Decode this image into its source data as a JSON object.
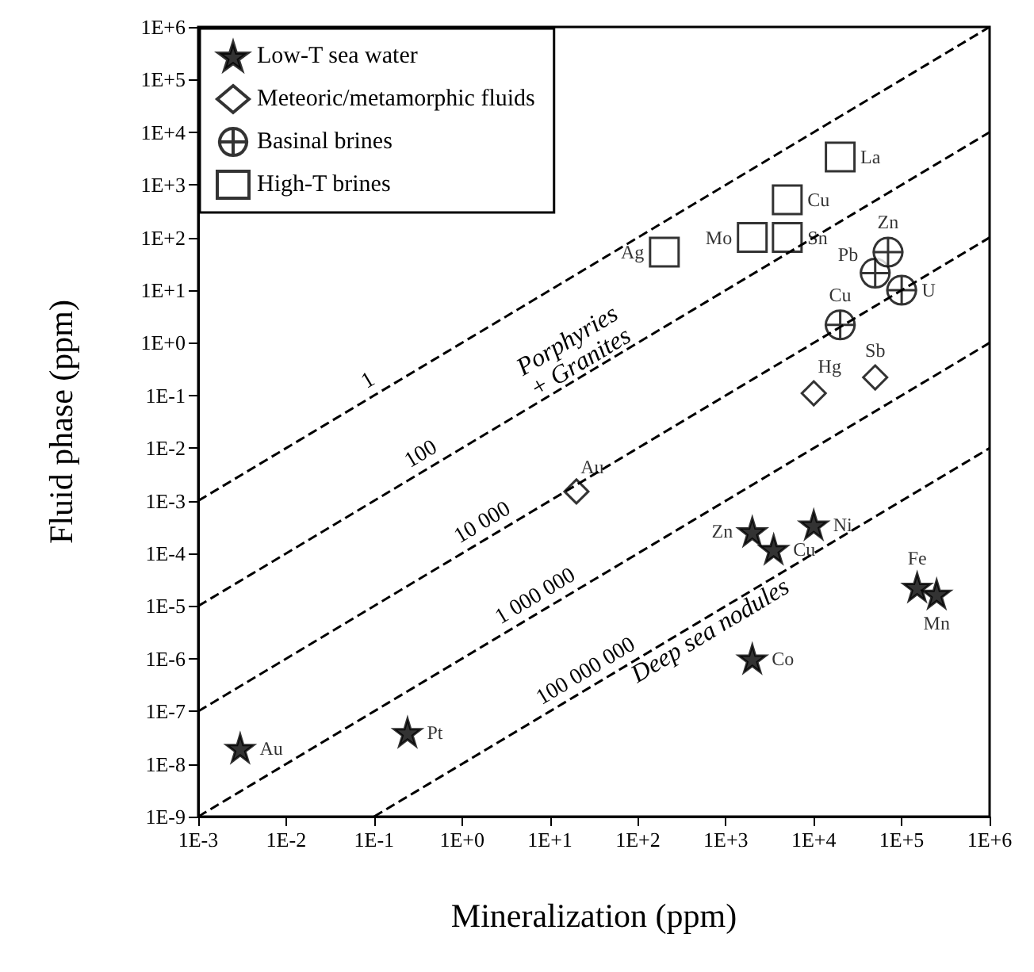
{
  "chart_data": {
    "type": "scatter",
    "xlabel": "Mineralization (ppm)",
    "ylabel": "Fluid phase (ppm)",
    "log": "xy",
    "legend": "top left",
    "grid": false,
    "xlim": [
      0.001,
      1000000
    ],
    "ylim": [
      1e-09,
      1000000
    ],
    "xticks": [
      {
        "value": 0.001,
        "label": "1E-3"
      },
      {
        "value": 0.01,
        "label": "1E-2"
      },
      {
        "value": 0.1,
        "label": "1E-1"
      },
      {
        "value": 1,
        "label": "1E+0"
      },
      {
        "value": 10,
        "label": "1E+1"
      },
      {
        "value": 100,
        "label": "1E+2"
      },
      {
        "value": 1000,
        "label": "1E+3"
      },
      {
        "value": 10000,
        "label": "1E+4"
      },
      {
        "value": 100000,
        "label": "1E+5"
      },
      {
        "value": 1000000,
        "label": "1E+6"
      }
    ],
    "yticks": [
      {
        "value": 1e-09,
        "label": "1E-9"
      },
      {
        "value": 1e-08,
        "label": "1E-8"
      },
      {
        "value": 1e-07,
        "label": "1E-7"
      },
      {
        "value": 1e-06,
        "label": "1E-6"
      },
      {
        "value": 1e-05,
        "label": "1E-5"
      },
      {
        "value": 0.0001,
        "label": "1E-4"
      },
      {
        "value": 0.001,
        "label": "1E-3"
      },
      {
        "value": 0.01,
        "label": "1E-2"
      },
      {
        "value": 0.1,
        "label": "1E-1"
      },
      {
        "value": 1,
        "label": "1E+0"
      },
      {
        "value": 10,
        "label": "1E+1"
      },
      {
        "value": 100,
        "label": "1E+2"
      },
      {
        "value": 1000,
        "label": "1E+3"
      },
      {
        "value": 10000,
        "label": "1E+4"
      },
      {
        "value": 100000,
        "label": "1E+5"
      },
      {
        "value": 1000000,
        "label": "1E+6"
      }
    ],
    "series": [
      {
        "type": "line",
        "name": "1",
        "color": "#000000",
        "line_style": "dashed",
        "marker": "none",
        "x": [
          0.001,
          0.1,
          1000000
        ],
        "values": [
          0.001,
          0.1,
          1000000
        ]
      },
      {
        "type": "line",
        "name": "100",
        "color": "#000000",
        "line_style": "dashed",
        "marker": "none",
        "x": [
          0.001,
          0.4,
          1000000
        ],
        "values": [
          1e-05,
          0.004,
          10000
        ]
      },
      {
        "type": "line",
        "name": "10 000",
        "color": "#000000",
        "line_style": "dashed",
        "marker": "none",
        "x": [
          0.001,
          2,
          1000000
        ],
        "values": [
          1e-07,
          0.0002,
          100
        ]
      },
      {
        "type": "line",
        "name": "1 000 000",
        "color": "#000000",
        "line_style": "dashed",
        "marker": "none",
        "x": [
          0.001,
          8,
          1000000
        ],
        "values": [
          1e-09,
          8e-06,
          1
        ]
      },
      {
        "type": "line",
        "name": "100 000 000",
        "color": "#000000",
        "line_style": "dashed",
        "marker": "none",
        "x": [
          0.1,
          30,
          1000000
        ],
        "values": [
          1e-09,
          3e-07,
          0.01
        ]
      },
      {
        "name": "Low-T sea water",
        "color": "#000000",
        "marker": "star",
        "x": [
          0.003,
          0.24,
          2000,
          3500,
          10000,
          150000,
          250000,
          2000
        ],
        "values": [
          2e-08,
          4e-08,
          0.00026,
          0.00012,
          0.00035,
          2.3e-05,
          1.7e-05,
          1e-06
        ],
        "value_labels": [
          "Au",
          "Pt",
          "Zn",
          "Cu",
          "Ni",
          "Fe",
          "Mn",
          "Co"
        ]
      },
      {
        "name": "Meteoric/metamorphic fluids",
        "color": "#000000",
        "marker": "diamond",
        "x": [
          20,
          10000,
          50000
        ],
        "values": [
          0.0015,
          0.11,
          0.22
        ],
        "value_labels": [
          "Au",
          "Hg",
          "Sb"
        ]
      },
      {
        "name": "Basinal brines",
        "color": "#000000",
        "marker": "cross",
        "x": [
          20000,
          50000,
          70000,
          100000
        ],
        "values": [
          2.2,
          21,
          53,
          10
        ],
        "value_labels": [
          "Cu",
          "Pb",
          "Zn",
          "U"
        ]
      },
      {
        "name": "High-T brines",
        "color": "#000000",
        "marker": "square",
        "x": [
          20000,
          5000,
          2000,
          5000,
          200
        ],
        "values": [
          3400,
          520,
          100,
          100,
          53
        ],
        "value_labels": [
          "La",
          "Cu",
          "Mo",
          "Sn",
          "Ag"
        ]
      }
    ],
    "annotations": [
      "Porphyries\n+ Granites",
      "Deep sea nodules"
    ]
  }
}
